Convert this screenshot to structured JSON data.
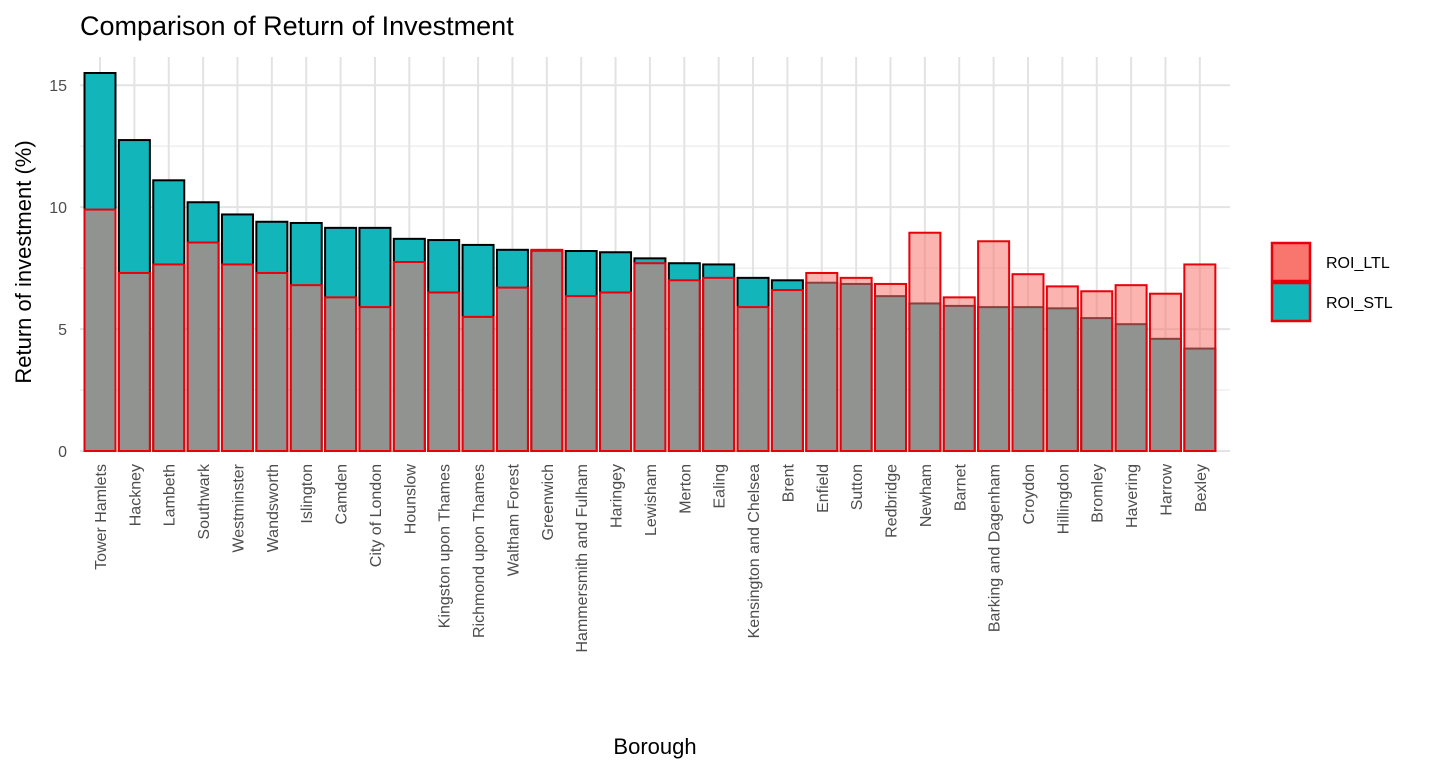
{
  "chart_data": {
    "type": "bar",
    "title": "Comparison of Return of Investment",
    "xlabel": "Borough",
    "ylabel": "Return of investment (%)",
    "ylim": [
      0,
      15.5
    ],
    "yticks": [
      0,
      5,
      10,
      15
    ],
    "grid": true,
    "legend_position": "right",
    "categories": [
      "Tower Hamlets",
      "Hackney",
      "Lambeth",
      "Southwark",
      "Westminster",
      "Wandsworth",
      "Islington",
      "Camden",
      "City of London",
      "Hounslow",
      "Kingston upon Thames",
      "Richmond upon Thames",
      "Waltham Forest",
      "Greenwich",
      "Hammersmith and Fulham",
      "Haringey",
      "Lewisham",
      "Merton",
      "Ealing",
      "Kensington and Chelsea",
      "Brent",
      "Enfield",
      "Sutton",
      "Redbridge",
      "Newham",
      "Barnet",
      "Barking and Dagenham",
      "Croydon",
      "Hillingdon",
      "Bromley",
      "Havering",
      "Harrow",
      "Bexley"
    ],
    "series": [
      {
        "name": "ROI_LTL",
        "color": "#F8766D",
        "values": [
          9.9,
          7.3,
          7.65,
          8.55,
          7.65,
          7.3,
          6.8,
          6.3,
          5.9,
          7.75,
          6.5,
          5.5,
          6.7,
          8.25,
          6.35,
          6.5,
          7.7,
          7.0,
          7.1,
          5.9,
          6.6,
          7.3,
          7.1,
          6.85,
          8.95,
          6.3,
          8.6,
          7.25,
          6.75,
          6.55,
          6.8,
          6.45,
          7.65
        ]
      },
      {
        "name": "ROI_STL",
        "color": "#00BFC4",
        "values": [
          15.5,
          12.75,
          11.1,
          10.2,
          9.7,
          9.4,
          9.35,
          9.15,
          9.15,
          8.7,
          8.65,
          8.45,
          8.25,
          8.2,
          8.2,
          8.15,
          7.9,
          7.7,
          7.65,
          7.1,
          7.0,
          6.9,
          6.85,
          6.35,
          6.05,
          5.95,
          5.9,
          5.9,
          5.85,
          5.45,
          5.2,
          4.6,
          4.2
        ]
      }
    ]
  }
}
